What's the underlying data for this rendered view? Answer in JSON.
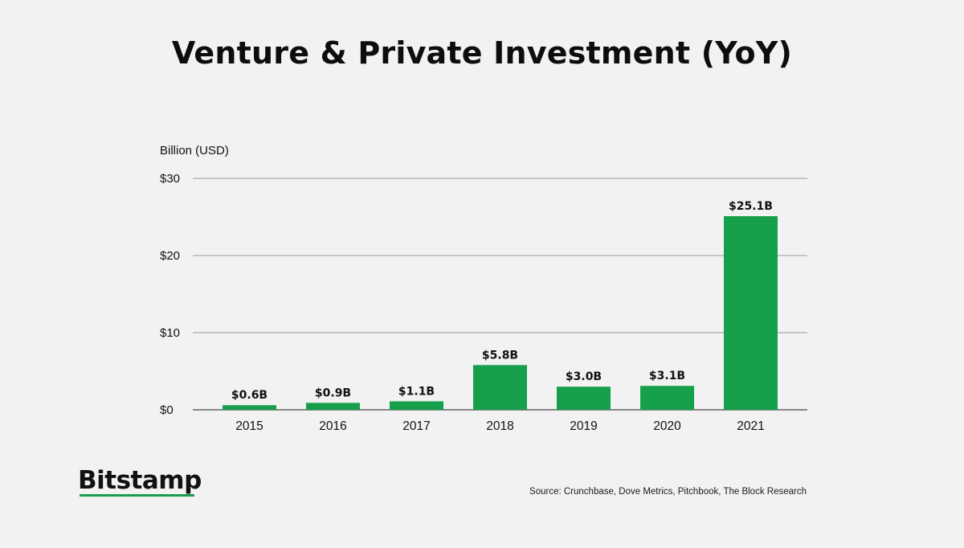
{
  "title": "Venture & Private Investment (YoY)",
  "brand": "Bitstamp",
  "source": "Source: Crunchbase, Dove Metrics, Pitchbook, The Block Research",
  "colors": {
    "bar": "#17a04b",
    "brand_underline": "#1a9c4a",
    "gridline": "#9a9a9a",
    "background": "#f2f2f2"
  },
  "chart_data": {
    "type": "bar",
    "ylabel": "Billion (USD)",
    "xlabel": "",
    "categories": [
      "2015",
      "2016",
      "2017",
      "2018",
      "2019",
      "2020",
      "2021"
    ],
    "values": [
      0.6,
      0.9,
      1.1,
      5.8,
      3.0,
      3.1,
      25.1
    ],
    "data_labels": [
      "$0.6B",
      "$0.9B",
      "$1.1B",
      "$5.8B",
      "$3.0B",
      "$3.1B",
      "$25.1B"
    ],
    "ylim": [
      0,
      30
    ],
    "yticks": [
      0,
      10,
      20,
      30
    ],
    "ytick_labels": [
      "$0",
      "$10",
      "$20",
      "$30"
    ],
    "grid": true,
    "legend": "none"
  }
}
